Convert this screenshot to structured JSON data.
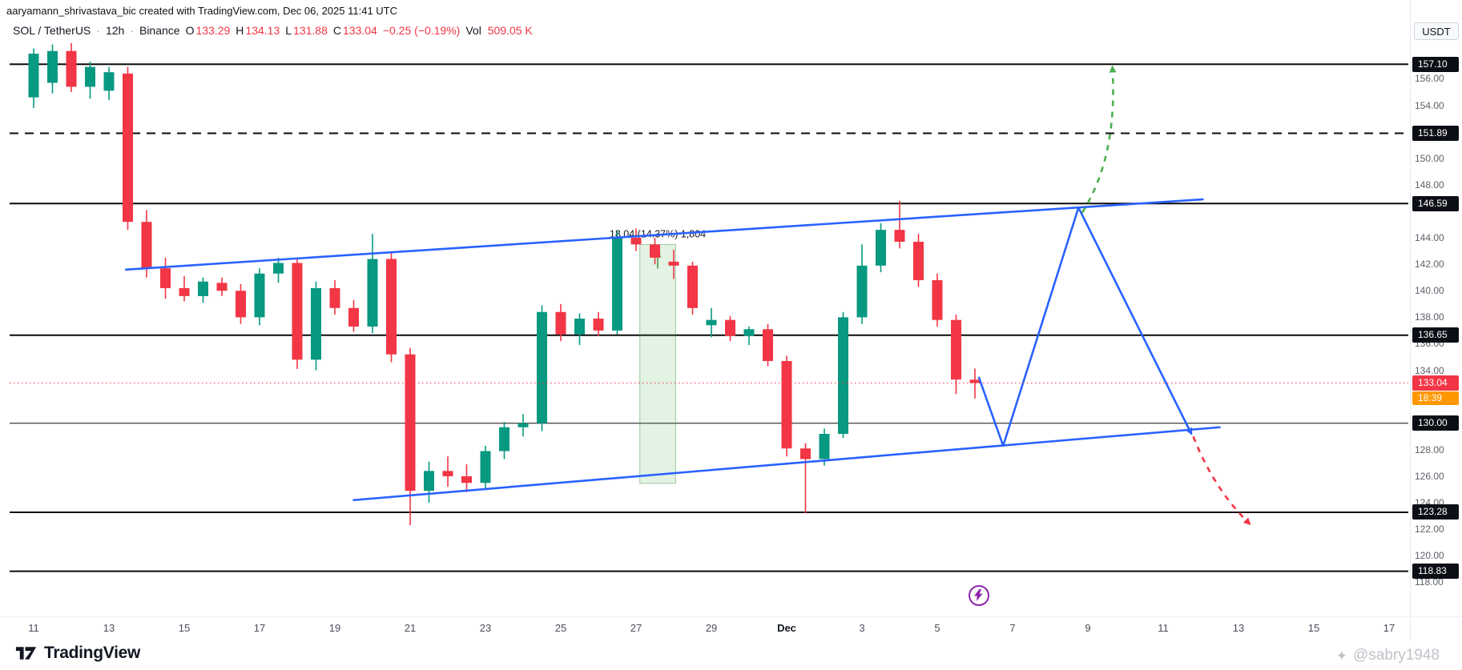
{
  "attribution": "aaryamann_shrivastava_bic created with TradingView.com, Dec 06, 2025 11:41 UTC",
  "legend": {
    "symbol": "SOL / TetherUS",
    "sep": "·",
    "interval": "12h",
    "exchange": "Binance",
    "o_label": "O",
    "open": "133.29",
    "h_label": "H",
    "high": "134.13",
    "l_label": "L",
    "low": "131.88",
    "c_label": "C",
    "close": "133.04",
    "change": "−0.25 (−0.19%)",
    "vol_label": "Vol",
    "volume": "509.05 K"
  },
  "axis": {
    "currency_label": "USDT",
    "price_labels": [
      "156.00",
      "154.00",
      "150.00",
      "148.00",
      "144.00",
      "142.00",
      "140.00",
      "138.00",
      "136.00",
      "134.00",
      "128.00",
      "126.00",
      "124.00",
      "122.00",
      "120.00",
      "118.00"
    ],
    "time_labels": [
      {
        "label": "11",
        "i": 0
      },
      {
        "label": "13",
        "i": 4
      },
      {
        "label": "15",
        "i": 8
      },
      {
        "label": "17",
        "i": 12
      },
      {
        "label": "19",
        "i": 16
      },
      {
        "label": "21",
        "i": 20
      },
      {
        "label": "23",
        "i": 24
      },
      {
        "label": "25",
        "i": 28
      },
      {
        "label": "27",
        "i": 32
      },
      {
        "label": "29",
        "i": 36
      },
      {
        "label": "Dec",
        "i": 40,
        "bold": true
      },
      {
        "label": "3",
        "i": 44
      },
      {
        "label": "5",
        "i": 48
      },
      {
        "label": "7",
        "i": 52
      },
      {
        "label": "9",
        "i": 56
      },
      {
        "label": "11",
        "i": 60
      },
      {
        "label": "13",
        "i": 64
      },
      {
        "label": "15",
        "i": 68
      },
      {
        "label": "17",
        "i": 72
      }
    ]
  },
  "chart_data": {
    "type": "candlestick",
    "title": "SOL / TetherUS 12h Binance",
    "interval": "12h",
    "up_color": "#089981",
    "down_color": "#f23645",
    "line_color": "#2962ff",
    "ylim": [
      117.0,
      161.95
    ],
    "candles": [
      [
        154.6,
        158.3,
        153.8,
        157.9
      ],
      [
        155.7,
        158.6,
        154.9,
        158.1
      ],
      [
        158.1,
        158.7,
        155.0,
        155.4
      ],
      [
        155.4,
        157.3,
        154.5,
        156.9
      ],
      [
        155.1,
        156.9,
        154.4,
        156.5
      ],
      [
        156.4,
        156.9,
        144.6,
        145.2
      ],
      [
        145.2,
        146.1,
        141.0,
        141.7
      ],
      [
        141.7,
        142.5,
        139.4,
        140.2
      ],
      [
        140.2,
        141.1,
        139.2,
        139.6
      ],
      [
        139.6,
        141.0,
        139.1,
        140.7
      ],
      [
        140.6,
        141.0,
        139.6,
        140.0
      ],
      [
        140.0,
        140.5,
        137.5,
        138.0
      ],
      [
        138.0,
        141.7,
        137.4,
        141.3
      ],
      [
        141.3,
        142.5,
        140.6,
        142.1
      ],
      [
        142.1,
        142.4,
        134.1,
        134.8
      ],
      [
        134.8,
        140.7,
        134.0,
        140.2
      ],
      [
        140.2,
        140.8,
        138.2,
        138.7
      ],
      [
        138.7,
        139.3,
        136.9,
        137.3
      ],
      [
        137.3,
        144.3,
        136.8,
        142.4
      ],
      [
        142.4,
        142.9,
        134.6,
        135.2
      ],
      [
        135.2,
        135.7,
        122.3,
        124.9
      ],
      [
        124.9,
        127.1,
        124.0,
        126.4
      ],
      [
        126.4,
        127.5,
        125.2,
        126.0
      ],
      [
        126.0,
        126.9,
        124.8,
        125.5
      ],
      [
        125.5,
        128.3,
        125.0,
        127.9
      ],
      [
        127.9,
        130.1,
        127.3,
        129.7
      ],
      [
        129.7,
        130.7,
        129.0,
        130.0
      ],
      [
        130.0,
        138.9,
        129.4,
        138.4
      ],
      [
        138.4,
        139.0,
        136.2,
        136.7
      ],
      [
        136.7,
        138.3,
        135.9,
        137.9
      ],
      [
        137.9,
        138.4,
        136.6,
        137.0
      ],
      [
        137.0,
        144.5,
        136.7,
        144.0
      ],
      [
        144.0,
        144.7,
        143.0,
        143.5
      ],
      [
        143.5,
        144.0,
        142.0,
        142.5
      ],
      [
        142.2,
        143.1,
        140.9,
        141.9
      ],
      [
        141.9,
        142.2,
        138.2,
        138.7
      ],
      [
        137.4,
        138.7,
        136.5,
        137.8
      ],
      [
        137.8,
        138.1,
        136.2,
        136.6
      ],
      [
        136.6,
        137.3,
        135.9,
        137.1
      ],
      [
        137.1,
        137.5,
        134.3,
        134.7
      ],
      [
        134.7,
        135.1,
        127.5,
        128.1
      ],
      [
        128.1,
        128.5,
        123.2,
        127.3
      ],
      [
        127.3,
        129.6,
        126.8,
        129.2
      ],
      [
        129.2,
        138.4,
        128.9,
        138.0
      ],
      [
        138.0,
        143.5,
        137.5,
        141.9
      ],
      [
        141.9,
        145.1,
        141.4,
        144.6
      ],
      [
        144.6,
        146.8,
        143.2,
        143.7
      ],
      [
        143.7,
        144.3,
        140.3,
        140.8
      ],
      [
        140.8,
        141.3,
        137.3,
        137.8
      ],
      [
        137.8,
        138.2,
        132.2,
        133.3
      ],
      [
        133.29,
        134.13,
        131.88,
        133.04
      ]
    ],
    "levels": [
      {
        "price": 157.1,
        "label": "157.10",
        "style": "solid",
        "width": 2
      },
      {
        "price": 151.89,
        "label": "151.89",
        "style": "dashed",
        "width": 2
      },
      {
        "price": 146.59,
        "label": "146.59",
        "style": "solid",
        "width": 2
      },
      {
        "price": 136.65,
        "label": "136.65",
        "style": "solid",
        "width": 2
      },
      {
        "price": 130.0,
        "label": "130.00",
        "style": "solid",
        "width": 1
      },
      {
        "price": 123.28,
        "label": "123.28",
        "style": "solid",
        "width": 2
      },
      {
        "price": 118.83,
        "label": "118.83",
        "style": "solid",
        "width": 2
      }
    ],
    "current_price": {
      "price": 133.04,
      "label": "133.04",
      "countdown": "18:39",
      "color": "#f23645",
      "countdown_color": "#ff9800"
    },
    "trendlines": [
      {
        "name": "upper-channel",
        "from": [
          4.9,
          141.6
        ],
        "to": [
          62.1,
          146.9
        ],
        "color": "#2962ff"
      },
      {
        "name": "lower-channel",
        "from": [
          17.0,
          124.2
        ],
        "to": [
          63.0,
          129.7
        ],
        "color": "#2962ff"
      }
    ],
    "projection_path": {
      "points": [
        [
          50.2,
          133.5
        ],
        [
          51.5,
          128.3
        ],
        [
          55.5,
          146.28
        ],
        [
          61.5,
          129.2
        ]
      ],
      "color": "#2962ff"
    },
    "green_arrow": {
      "from": [
        55.7,
        145.9
      ],
      "ctrl": [
        57.6,
        150.2
      ],
      "to": [
        57.3,
        156.9
      ],
      "color": "#4caf50"
    },
    "red_arrow": {
      "from": [
        61.6,
        129.0
      ],
      "ctrl": [
        62.7,
        125.0
      ],
      "to": [
        64.6,
        122.4
      ],
      "color": "#f23645"
    },
    "measurement": {
      "label": "18.04 (14.37%) 1,804",
      "from_price": 125.46,
      "to_price": 143.5,
      "i_start": 32.2,
      "i_end": 34.1,
      "fill": "rgba(76,175,80,0.16)",
      "stroke": "rgba(56,142,60,0.45)"
    },
    "lightning_marker": {
      "i": 50.2,
      "price": 117.0,
      "color": "#8e24aa"
    }
  },
  "footer": {
    "logo_text": "TradingView",
    "watermark": "@sabry1948"
  }
}
